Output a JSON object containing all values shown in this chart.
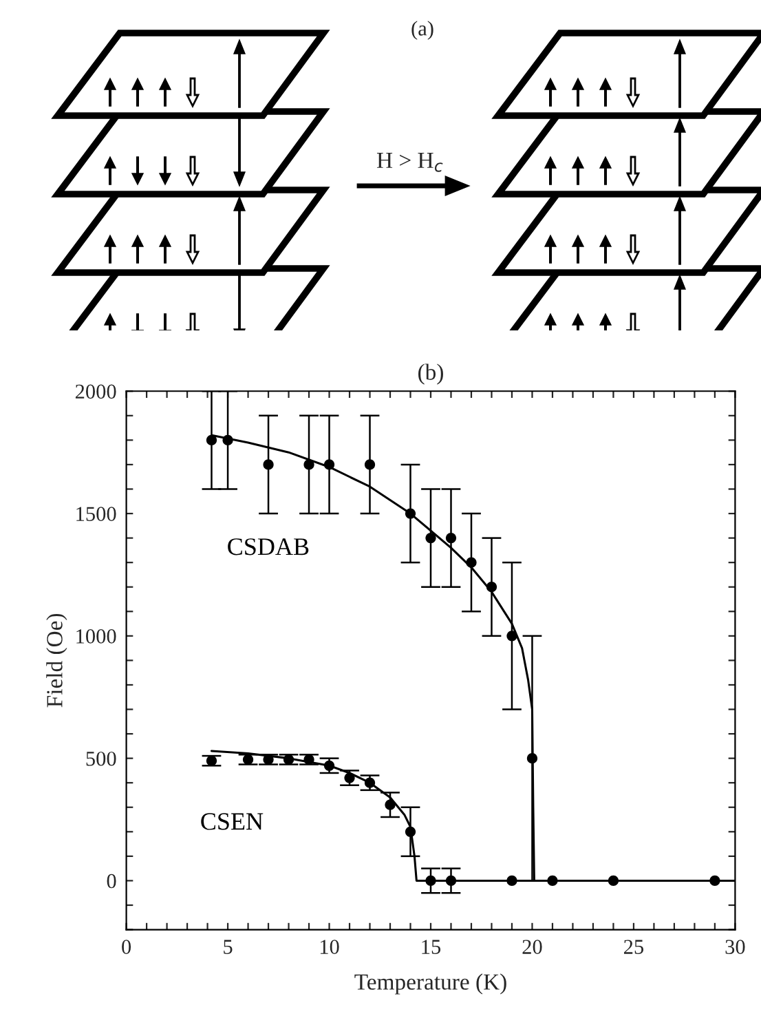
{
  "chart_data": {
    "type": "scatter",
    "title": "(b)",
    "xlabel": "Temperature (K)",
    "ylabel": "Field (Oe)",
    "annotations": [
      "(a)",
      "H > H$_{c}$"
    ],
    "series": [
      {
        "name": "CSDAB",
        "marker": "circle",
        "color": "#000000",
        "x": [
          4.2,
          5,
          7,
          9,
          10,
          12,
          14,
          15,
          16,
          17,
          18,
          19,
          20,
          21,
          24,
          29
        ],
        "values": [
          1800,
          1800,
          1700,
          1700,
          1700,
          1700,
          1500,
          1400,
          1400,
          1300,
          1200,
          1000,
          500,
          0,
          0,
          0
        ],
        "errors": [
          200,
          200,
          200,
          200,
          200,
          200,
          200,
          200,
          200,
          200,
          200,
          300,
          500,
          null,
          null,
          null
        ]
      },
      {
        "name": "CSEN",
        "marker": "circle",
        "color": "#000000",
        "x": [
          4.2,
          6,
          7,
          8,
          9,
          10,
          11,
          12,
          13,
          14,
          15,
          16,
          19
        ],
        "values": [
          490,
          495,
          495,
          495,
          495,
          470,
          420,
          400,
          310,
          200,
          0,
          0,
          0
        ],
        "errors": [
          20,
          20,
          20,
          20,
          20,
          30,
          30,
          30,
          50,
          100,
          50,
          50,
          null
        ]
      },
      {
        "type": "line",
        "marker": "none",
        "color": "#000000",
        "x": [
          4.2,
          6,
          8,
          10,
          12,
          14,
          16,
          17,
          18,
          19,
          19.5,
          19.8,
          20,
          20.05,
          20.1,
          30
        ],
        "values": [
          1820,
          1790,
          1750,
          1690,
          1610,
          1500,
          1360,
          1280,
          1180,
          1050,
          950,
          820,
          700,
          300,
          0,
          0
        ]
      },
      {
        "type": "line",
        "marker": "none",
        "color": "#000000",
        "x": [
          4.2,
          6,
          8,
          10,
          11,
          12,
          13,
          13.7,
          14,
          14.2,
          14.3,
          30
        ],
        "values": [
          530,
          520,
          500,
          470,
          440,
          400,
          340,
          270,
          220,
          100,
          0,
          0
        ]
      }
    ],
    "line_style": "solid",
    "grid": false,
    "legend": false,
    "xlim": [
      0,
      30
    ],
    "ylim": [
      -200,
      2000
    ],
    "xticks": [
      0,
      {
        "value": 1,
        "label": null
      },
      {
        "value": 2,
        "label": null
      },
      {
        "value": 3,
        "label": null
      },
      {
        "value": 4,
        "label": null
      },
      5,
      {
        "value": 6,
        "label": null
      },
      {
        "value": 7,
        "label": null
      },
      {
        "value": 8,
        "label": null
      },
      {
        "value": 9,
        "label": null
      },
      10,
      {
        "value": 11,
        "label": null
      },
      {
        "value": 12,
        "label": null
      },
      {
        "value": 13,
        "label": null
      },
      {
        "value": 14,
        "label": null
      },
      15,
      {
        "value": 16,
        "label": null
      },
      {
        "value": 17,
        "label": null
      },
      {
        "value": 18,
        "label": null
      },
      {
        "value": 19,
        "label": null
      },
      20,
      {
        "value": 21,
        "label": null
      },
      {
        "value": 22,
        "label": null
      },
      {
        "value": 23,
        "label": null
      },
      {
        "value": 24,
        "label": null
      },
      25,
      {
        "value": 26,
        "label": null
      },
      {
        "value": 27,
        "label": null
      },
      {
        "value": 28,
        "label": null
      },
      {
        "value": 29,
        "label": null
      },
      30
    ],
    "yticks": [
      {
        "value": -200,
        "label": null
      },
      {
        "value": -100,
        "label": null
      },
      0,
      {
        "value": 100,
        "label": null
      },
      {
        "value": 200,
        "label": null
      },
      {
        "value": 300,
        "label": null
      },
      {
        "value": 400,
        "label": null
      },
      500,
      {
        "value": 600,
        "label": null
      },
      {
        "value": 700,
        "label": null
      },
      {
        "value": 800,
        "label": null
      },
      {
        "value": 900,
        "label": null
      },
      1000,
      {
        "value": 1100,
        "label": null
      },
      {
        "value": 1200,
        "label": null
      },
      {
        "value": 1300,
        "label": null
      },
      {
        "value": 1400,
        "label": null
      },
      1500,
      {
        "value": 1600,
        "label": null
      },
      {
        "value": 1700,
        "label": null
      },
      {
        "value": 1800,
        "label": null
      },
      {
        "value": 1900,
        "label": null
      },
      2000
    ]
  }
}
